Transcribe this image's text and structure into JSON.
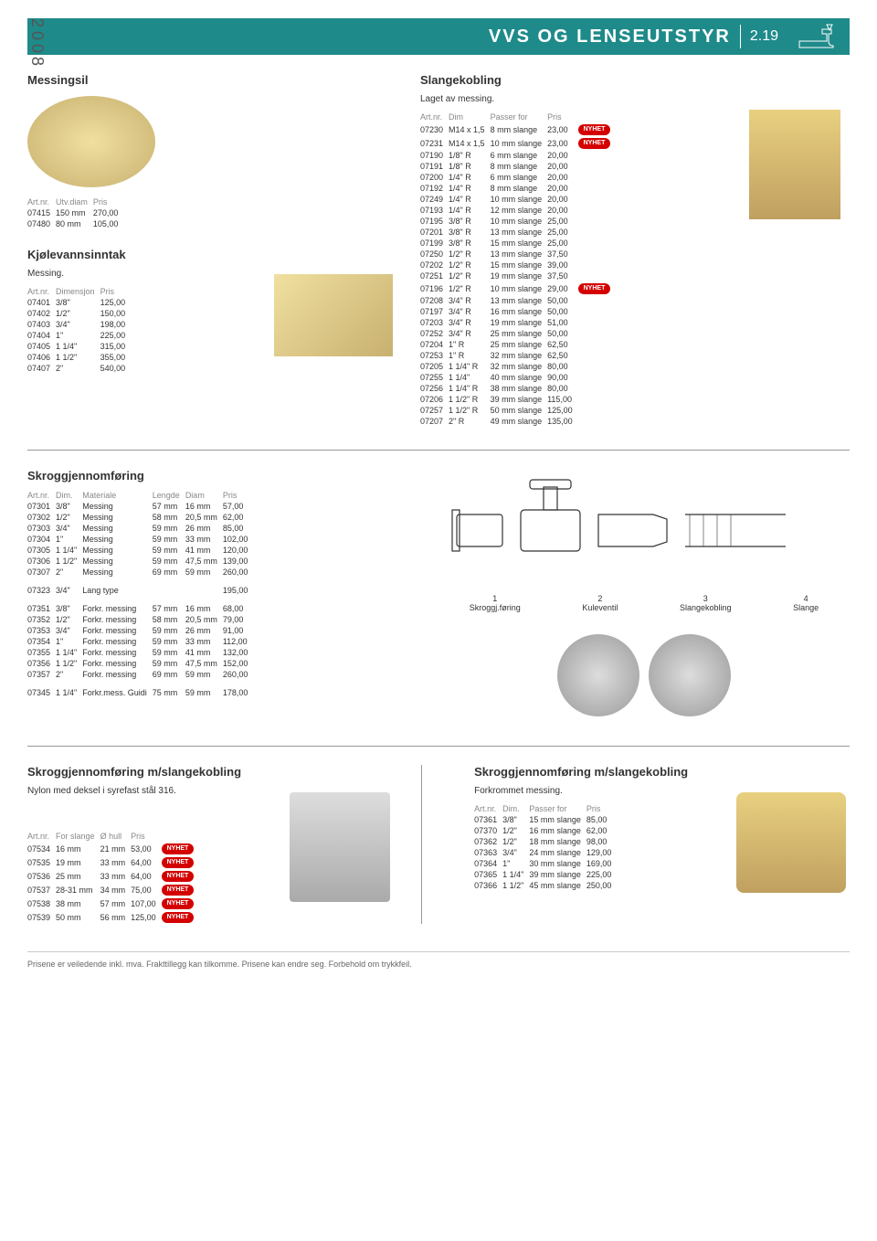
{
  "year": "2008",
  "header": {
    "title": "VVS OG LENSEUTSTYR",
    "num": "2.19"
  },
  "messingsil": {
    "title": "Messingsil",
    "headers": [
      "Art.nr.",
      "Utv.diam",
      "Pris"
    ],
    "rows": [
      [
        "07415",
        "150 mm",
        "270,00"
      ],
      [
        "07480",
        "80 mm",
        "105,00"
      ]
    ]
  },
  "kjolevann": {
    "title": "Kjølevannsinntak",
    "sub": "Messing.",
    "headers": [
      "Art.nr.",
      "Dimensjon",
      "Pris"
    ],
    "rows": [
      [
        "07401",
        "3/8\"",
        "125,00"
      ],
      [
        "07402",
        "1/2\"",
        "150,00"
      ],
      [
        "07403",
        "3/4\"",
        "198,00"
      ],
      [
        "07404",
        "1\"",
        "225,00"
      ],
      [
        "07405",
        "1 1/4\"",
        "315,00"
      ],
      [
        "07406",
        "1 1/2\"",
        "355,00"
      ],
      [
        "07407",
        "2\"",
        "540,00"
      ]
    ]
  },
  "slangekobling": {
    "title": "Slangekobling",
    "sub": "Laget av messing.",
    "headers": [
      "Art.nr.",
      "Dim",
      "Passer for",
      "Pris"
    ],
    "rows": [
      [
        "07230",
        "M14 x 1,5",
        "8 mm slange",
        "23,00",
        "NYHET"
      ],
      [
        "07231",
        "M14 x 1,5",
        "10 mm slange",
        "23,00",
        "NYHET"
      ],
      [
        "07190",
        "1/8\" R",
        "6 mm slange",
        "20,00",
        ""
      ],
      [
        "07191",
        "1/8\" R",
        "8 mm slange",
        "20,00",
        ""
      ],
      [
        "07200",
        "1/4\" R",
        "6 mm slange",
        "20,00",
        ""
      ],
      [
        "07192",
        "1/4\" R",
        "8 mm slange",
        "20,00",
        ""
      ],
      [
        "07249",
        "1/4\" R",
        "10 mm slange",
        "20,00",
        ""
      ],
      [
        "07193",
        "1/4\" R",
        "12 mm slange",
        "20,00",
        ""
      ],
      [
        "07195",
        "3/8\" R",
        "10 mm slange",
        "25,00",
        ""
      ],
      [
        "07201",
        "3/8\" R",
        "13 mm slange",
        "25,00",
        ""
      ],
      [
        "07199",
        "3/8\" R",
        "15 mm slange",
        "25,00",
        ""
      ],
      [
        "07250",
        "1/2\" R",
        "13 mm slange",
        "37,50",
        ""
      ],
      [
        "07202",
        "1/2\" R",
        "15 mm slange",
        "39,00",
        ""
      ],
      [
        "07251",
        "1/2\" R",
        "19 mm slange",
        "37,50",
        ""
      ],
      [
        "07196",
        "1/2\" R",
        "10 mm slange",
        "29,00",
        "NYHET"
      ],
      [
        "07208",
        "3/4\" R",
        "13 mm slange",
        "50,00",
        ""
      ],
      [
        "07197",
        "3/4\" R",
        "16 mm slange",
        "50,00",
        ""
      ],
      [
        "07203",
        "3/4\" R",
        "19 mm slange",
        "51,00",
        ""
      ],
      [
        "07252",
        "3/4\" R",
        "25 mm slange",
        "50,00",
        ""
      ],
      [
        "07204",
        "1\" R",
        "25 mm slange",
        "62,50",
        ""
      ],
      [
        "07253",
        "1\" R",
        "32 mm slange",
        "62,50",
        ""
      ],
      [
        "07205",
        "1 1/4\" R",
        "32 mm slange",
        "80,00",
        ""
      ],
      [
        "07255",
        "1 1/4\"",
        "40 mm slange",
        "90,00",
        ""
      ],
      [
        "07256",
        "1 1/4\" R",
        "38 mm slange",
        "80,00",
        ""
      ],
      [
        "07206",
        "1 1/2\" R",
        "39 mm slange",
        "115,00",
        ""
      ],
      [
        "07257",
        "1 1/2\" R",
        "50 mm slange",
        "125,00",
        ""
      ],
      [
        "07207",
        "2\" R",
        "49 mm slange",
        "135,00",
        ""
      ]
    ]
  },
  "skrog": {
    "title": "Skroggjennomføring",
    "headers": [
      "Art.nr.",
      "Dim.",
      "Materiale",
      "Lengde",
      "Diam",
      "Pris"
    ],
    "rows": [
      [
        "07301",
        "3/8\"",
        "Messing",
        "57 mm",
        "16 mm",
        "57,00"
      ],
      [
        "07302",
        "1/2\"",
        "Messing",
        "58 mm",
        "20,5 mm",
        "62,00"
      ],
      [
        "07303",
        "3/4\"",
        "Messing",
        "59 mm",
        "26 mm",
        "85,00"
      ],
      [
        "07304",
        "1\"",
        "Messing",
        "59 mm",
        "33 mm",
        "102,00"
      ],
      [
        "07305",
        "1 1/4\"",
        "Messing",
        "59 mm",
        "41 mm",
        "120,00"
      ],
      [
        "07306",
        "1 1/2\"",
        "Messing",
        "59 mm",
        "47,5 mm",
        "139,00"
      ],
      [
        "07307",
        "2\"",
        "Messing",
        "69 mm",
        "59 mm",
        "260,00"
      ]
    ],
    "lang": [
      "07323",
      "3/4\"",
      "Lang type",
      "",
      "",
      "195,00"
    ],
    "rows2": [
      [
        "07351",
        "3/8\"",
        "Forkr. messing",
        "57 mm",
        "16 mm",
        "68,00"
      ],
      [
        "07352",
        "1/2\"",
        "Forkr. messing",
        "58 mm",
        "20,5 mm",
        "79,00"
      ],
      [
        "07353",
        "3/4\"",
        "Forkr. messing",
        "59 mm",
        "26 mm",
        "91,00"
      ],
      [
        "07354",
        "1\"",
        "Forkr. messing",
        "59 mm",
        "33 mm",
        "112,00"
      ],
      [
        "07355",
        "1 1/4\"",
        "Forkr. messing",
        "59 mm",
        "41 mm",
        "132,00"
      ],
      [
        "07356",
        "1 1/2\"",
        "Forkr. messing",
        "59 mm",
        "47,5 mm",
        "152,00"
      ],
      [
        "07357",
        "2\"",
        "Forkr. messing",
        "69 mm",
        "59 mm",
        "260,00"
      ]
    ],
    "guidi": [
      "07345",
      "1 1/4\"",
      "Forkr.mess. Guidi",
      "75 mm",
      "59 mm",
      "178,00"
    ]
  },
  "diagram": {
    "labels": [
      [
        "1",
        "Skroggj.føring"
      ],
      [
        "2",
        "Kuleventil"
      ],
      [
        "3",
        "Slangekobling"
      ],
      [
        "4",
        "Slange"
      ]
    ]
  },
  "skrogSlange1": {
    "title": "Skroggjennomføring m/slangekobling",
    "sub": "Nylon med deksel i syrefast stål 316.",
    "headers": [
      "Art.nr.",
      "For slange",
      "Ø hull",
      "Pris"
    ],
    "rows": [
      [
        "07534",
        "16 mm",
        "21 mm",
        "53,00",
        "NYHET"
      ],
      [
        "07535",
        "19 mm",
        "33 mm",
        "64,00",
        "NYHET"
      ],
      [
        "07536",
        "25 mm",
        "33 mm",
        "64,00",
        "NYHET"
      ],
      [
        "07537",
        "28-31 mm",
        "34 mm",
        "75,00",
        "NYHET"
      ],
      [
        "07538",
        "38 mm",
        "57 mm",
        "107,00",
        "NYHET"
      ],
      [
        "07539",
        "50 mm",
        "56 mm",
        "125,00",
        "NYHET"
      ]
    ]
  },
  "skrogSlange2": {
    "title": "Skroggjennomføring m/slangekobling",
    "sub": "Forkrommet messing.",
    "headers": [
      "Art.nr.",
      "Dim.",
      "Passer for",
      "Pris"
    ],
    "rows": [
      [
        "07361",
        "3/8\"",
        "15 mm slange",
        "85,00"
      ],
      [
        "07370",
        "1/2\"",
        "16 mm slange",
        "62,00"
      ],
      [
        "07362",
        "1/2\"",
        "18 mm slange",
        "98,00"
      ],
      [
        "07363",
        "3/4\"",
        "24 mm slange",
        "129,00"
      ],
      [
        "07364",
        "1\"",
        "30 mm slange",
        "169,00"
      ],
      [
        "07365",
        "1 1/4\"",
        "39 mm slange",
        "225,00"
      ],
      [
        "07366",
        "1 1/2\"",
        "45 mm slange",
        "250,00"
      ]
    ]
  },
  "footer": "Prisene er veiledende inkl. mva. Frakttillegg kan tilkomme. Prisene kan endre seg. Forbehold om trykkfeil."
}
